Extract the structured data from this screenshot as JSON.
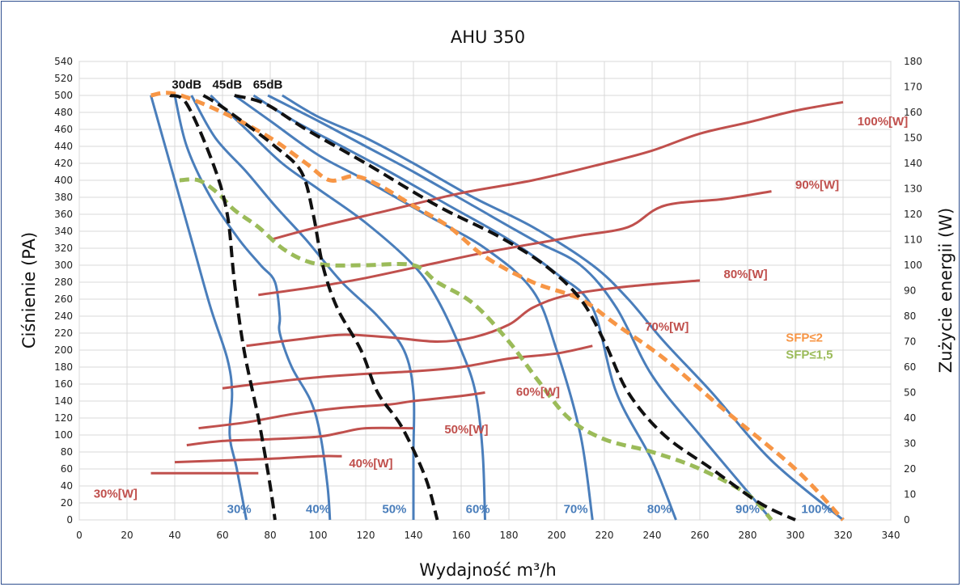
{
  "chart_data": {
    "type": "line",
    "title": "AHU 350",
    "xlabel": "Wydajność m³/h",
    "ylabel": "Ciśnienie (PA)",
    "y2label": "Zużycie energii (W)",
    "xlim": [
      0,
      340
    ],
    "ylim": [
      0,
      540
    ],
    "y2lim": [
      0,
      180
    ],
    "x_ticks": [
      0,
      20,
      40,
      60,
      80,
      100,
      120,
      140,
      160,
      180,
      200,
      220,
      240,
      260,
      280,
      300,
      320,
      340
    ],
    "y_ticks": [
      0,
      20,
      40,
      60,
      80,
      100,
      120,
      140,
      160,
      180,
      200,
      220,
      240,
      260,
      280,
      300,
      320,
      340,
      360,
      380,
      400,
      420,
      440,
      460,
      480,
      500,
      520,
      540
    ],
    "y2_ticks": [
      0,
      10,
      20,
      30,
      40,
      50,
      60,
      70,
      80,
      90,
      100,
      110,
      120,
      130,
      140,
      150,
      160,
      170,
      180
    ],
    "grid": true,
    "colors": {
      "fan": "#4a7ebb",
      "power": "#c0504d",
      "noise": "#111111",
      "sfp2": "#f79646",
      "sfp15": "#9bbb59"
    },
    "fan_curves": [
      {
        "name": "30%",
        "label_xy": [
          67,
          8
        ],
        "points": [
          [
            30,
            500
          ],
          [
            36,
            440
          ],
          [
            42,
            380
          ],
          [
            48,
            320
          ],
          [
            55,
            250
          ],
          [
            62,
            190
          ],
          [
            64,
            150
          ],
          [
            63,
            100
          ],
          [
            66,
            60
          ],
          [
            70,
            0
          ]
        ]
      },
      {
        "name": "40%",
        "label_xy": [
          100,
          8
        ],
        "points": [
          [
            40,
            500
          ],
          [
            45,
            440
          ],
          [
            55,
            380
          ],
          [
            67,
            330
          ],
          [
            76,
            300
          ],
          [
            82,
            280
          ],
          [
            84,
            240
          ],
          [
            84,
            220
          ],
          [
            89,
            180
          ],
          [
            97,
            140
          ],
          [
            101,
            100
          ],
          [
            104,
            40
          ],
          [
            105,
            0
          ]
        ]
      },
      {
        "name": "50%",
        "label_xy": [
          132,
          8
        ],
        "points": [
          [
            47,
            500
          ],
          [
            57,
            450
          ],
          [
            70,
            410
          ],
          [
            82,
            370
          ],
          [
            95,
            330
          ],
          [
            110,
            280
          ],
          [
            125,
            240
          ],
          [
            136,
            200
          ],
          [
            140,
            150
          ],
          [
            140,
            80
          ],
          [
            140,
            0
          ]
        ]
      },
      {
        "name": "60%",
        "label_xy": [
          167,
          8
        ],
        "points": [
          [
            55,
            500
          ],
          [
            70,
            460
          ],
          [
            85,
            420
          ],
          [
            100,
            390
          ],
          [
            120,
            350
          ],
          [
            140,
            300
          ],
          [
            150,
            260
          ],
          [
            160,
            200
          ],
          [
            166,
            150
          ],
          [
            169,
            80
          ],
          [
            170,
            0
          ]
        ]
      },
      {
        "name": "70%",
        "label_xy": [
          208,
          8
        ],
        "points": [
          [
            65,
            500
          ],
          [
            80,
            470
          ],
          [
            100,
            430
          ],
          [
            120,
            400
          ],
          [
            145,
            360
          ],
          [
            170,
            320
          ],
          [
            190,
            270
          ],
          [
            200,
            200
          ],
          [
            210,
            100
          ],
          [
            215,
            0
          ]
        ]
      },
      {
        "name": "80%",
        "label_xy": [
          243,
          8
        ],
        "points": [
          [
            73,
            500
          ],
          [
            90,
            470
          ],
          [
            110,
            440
          ],
          [
            130,
            410
          ],
          [
            155,
            370
          ],
          [
            180,
            330
          ],
          [
            200,
            290
          ],
          [
            215,
            250
          ],
          [
            225,
            150
          ],
          [
            240,
            70
          ],
          [
            250,
            0
          ]
        ]
      },
      {
        "name": "90%",
        "label_xy": [
          280,
          8
        ],
        "points": [
          [
            79,
            500
          ],
          [
            100,
            470
          ],
          [
            120,
            440
          ],
          [
            140,
            410
          ],
          [
            165,
            370
          ],
          [
            190,
            330
          ],
          [
            210,
            300
          ],
          [
            225,
            250
          ],
          [
            240,
            170
          ],
          [
            260,
            100
          ],
          [
            290,
            0
          ]
        ]
      },
      {
        "name": "100%",
        "label_xy": [
          309,
          8
        ],
        "points": [
          [
            85,
            500
          ],
          [
            100,
            475
          ],
          [
            120,
            450
          ],
          [
            140,
            420
          ],
          [
            165,
            380
          ],
          [
            190,
            345
          ],
          [
            215,
            300
          ],
          [
            230,
            260
          ],
          [
            245,
            210
          ],
          [
            265,
            150
          ],
          [
            290,
            70
          ],
          [
            320,
            0
          ]
        ]
      }
    ],
    "power_curves": [
      {
        "name": "30%[W]",
        "label_xy": [
          6,
          26
        ],
        "points": [
          [
            30,
            55
          ],
          [
            55,
            55
          ],
          [
            75,
            55
          ]
        ]
      },
      {
        "name": "40%[W]",
        "label_xy": [
          113,
          62
        ],
        "points": [
          [
            40,
            68
          ],
          [
            60,
            70
          ],
          [
            80,
            72
          ],
          [
            100,
            75
          ],
          [
            110,
            75
          ]
        ]
      },
      {
        "name": "50%[W]",
        "label_xy": [
          153,
          102
        ],
        "points": [
          [
            45,
            88
          ],
          [
            60,
            93
          ],
          [
            80,
            95
          ],
          [
            100,
            98
          ],
          [
            110,
            103
          ],
          [
            120,
            108
          ],
          [
            140,
            108
          ]
        ]
      },
      {
        "name": "60%[W]",
        "label_xy": [
          183,
          146
        ],
        "points": [
          [
            50,
            108
          ],
          [
            70,
            115
          ],
          [
            90,
            125
          ],
          [
            110,
            132
          ],
          [
            130,
            136
          ],
          [
            140,
            140
          ],
          [
            160,
            146
          ],
          [
            170,
            150
          ]
        ]
      },
      {
        "name": "70%[W]",
        "label_xy": [
          237,
          223
        ],
        "points": [
          [
            60,
            155
          ],
          [
            80,
            162
          ],
          [
            100,
            168
          ],
          [
            120,
            172
          ],
          [
            140,
            175
          ],
          [
            160,
            180
          ],
          [
            180,
            190
          ],
          [
            200,
            196
          ],
          [
            215,
            205
          ]
        ]
      },
      {
        "name": "80%[W]",
        "label_xy": [
          270,
          285
        ],
        "points": [
          [
            70,
            205
          ],
          [
            90,
            212
          ],
          [
            110,
            218
          ],
          [
            130,
            215
          ],
          [
            150,
            210
          ],
          [
            165,
            215
          ],
          [
            180,
            230
          ],
          [
            190,
            250
          ],
          [
            205,
            265
          ],
          [
            230,
            275
          ],
          [
            260,
            282
          ]
        ]
      },
      {
        "name": "90%[W]",
        "label_xy": [
          300,
          390
        ],
        "points": [
          [
            75,
            265
          ],
          [
            100,
            275
          ],
          [
            120,
            285
          ],
          [
            145,
            300
          ],
          [
            170,
            315
          ],
          [
            200,
            330
          ],
          [
            210,
            335
          ],
          [
            230,
            345
          ],
          [
            245,
            370
          ],
          [
            270,
            378
          ],
          [
            290,
            387
          ]
        ]
      },
      {
        "name": "100%[W]",
        "label_xy": [
          326,
          465
        ],
        "points": [
          [
            80,
            330
          ],
          [
            100,
            345
          ],
          [
            130,
            365
          ],
          [
            160,
            385
          ],
          [
            190,
            400
          ],
          [
            220,
            420
          ],
          [
            240,
            435
          ],
          [
            260,
            455
          ],
          [
            280,
            468
          ],
          [
            300,
            482
          ],
          [
            320,
            492
          ]
        ]
      }
    ],
    "noise_curves": [
      {
        "name": "30dB",
        "label_xy": [
          45,
          508
        ],
        "points": [
          [
            38,
            500
          ],
          [
            45,
            490
          ],
          [
            56,
            420
          ],
          [
            62,
            360
          ],
          [
            65,
            280
          ],
          [
            69,
            200
          ],
          [
            75,
            120
          ],
          [
            80,
            40
          ],
          [
            82,
            0
          ]
        ]
      },
      {
        "name": "45dB",
        "label_xy": [
          62,
          508
        ],
        "points": [
          [
            52,
            500
          ],
          [
            58,
            490
          ],
          [
            68,
            470
          ],
          [
            82,
            440
          ],
          [
            93,
            410
          ],
          [
            98,
            360
          ],
          [
            102,
            300
          ],
          [
            108,
            250
          ],
          [
            118,
            200
          ],
          [
            125,
            150
          ],
          [
            135,
            110
          ],
          [
            145,
            50
          ],
          [
            150,
            0
          ]
        ]
      },
      {
        "name": "65dB",
        "label_xy": [
          79,
          508
        ],
        "points": [
          [
            65,
            500
          ],
          [
            78,
            490
          ],
          [
            95,
            460
          ],
          [
            120,
            420
          ],
          [
            150,
            370
          ],
          [
            175,
            335
          ],
          [
            195,
            300
          ],
          [
            210,
            260
          ],
          [
            220,
            210
          ],
          [
            230,
            150
          ],
          [
            245,
            100
          ],
          [
            265,
            60
          ],
          [
            285,
            20
          ],
          [
            300,
            0
          ]
        ]
      }
    ],
    "sfp_curves": [
      {
        "name": "SFP≤2",
        "color": "#f79646",
        "label_xy": [
          296,
          210
        ],
        "points": [
          [
            30,
            500
          ],
          [
            40,
            502
          ],
          [
            60,
            480
          ],
          [
            80,
            450
          ],
          [
            95,
            420
          ],
          [
            105,
            400
          ],
          [
            115,
            405
          ],
          [
            125,
            395
          ],
          [
            140,
            370
          ],
          [
            155,
            345
          ],
          [
            170,
            310
          ],
          [
            190,
            280
          ],
          [
            210,
            260
          ],
          [
            225,
            230
          ],
          [
            245,
            190
          ],
          [
            270,
            130
          ],
          [
            300,
            60
          ],
          [
            320,
            0
          ]
        ]
      },
      {
        "name": "SFP≤1,5",
        "color": "#9bbb59",
        "label_xy": [
          296,
          190
        ],
        "points": [
          [
            42,
            400
          ],
          [
            50,
            400
          ],
          [
            58,
            385
          ],
          [
            65,
            365
          ],
          [
            75,
            345
          ],
          [
            85,
            320
          ],
          [
            95,
            305
          ],
          [
            105,
            300
          ],
          [
            120,
            300
          ],
          [
            140,
            300
          ],
          [
            150,
            280
          ],
          [
            165,
            255
          ],
          [
            180,
            210
          ],
          [
            192,
            165
          ],
          [
            205,
            120
          ],
          [
            220,
            95
          ],
          [
            240,
            80
          ],
          [
            260,
            60
          ],
          [
            280,
            30
          ],
          [
            290,
            0
          ]
        ]
      }
    ]
  }
}
